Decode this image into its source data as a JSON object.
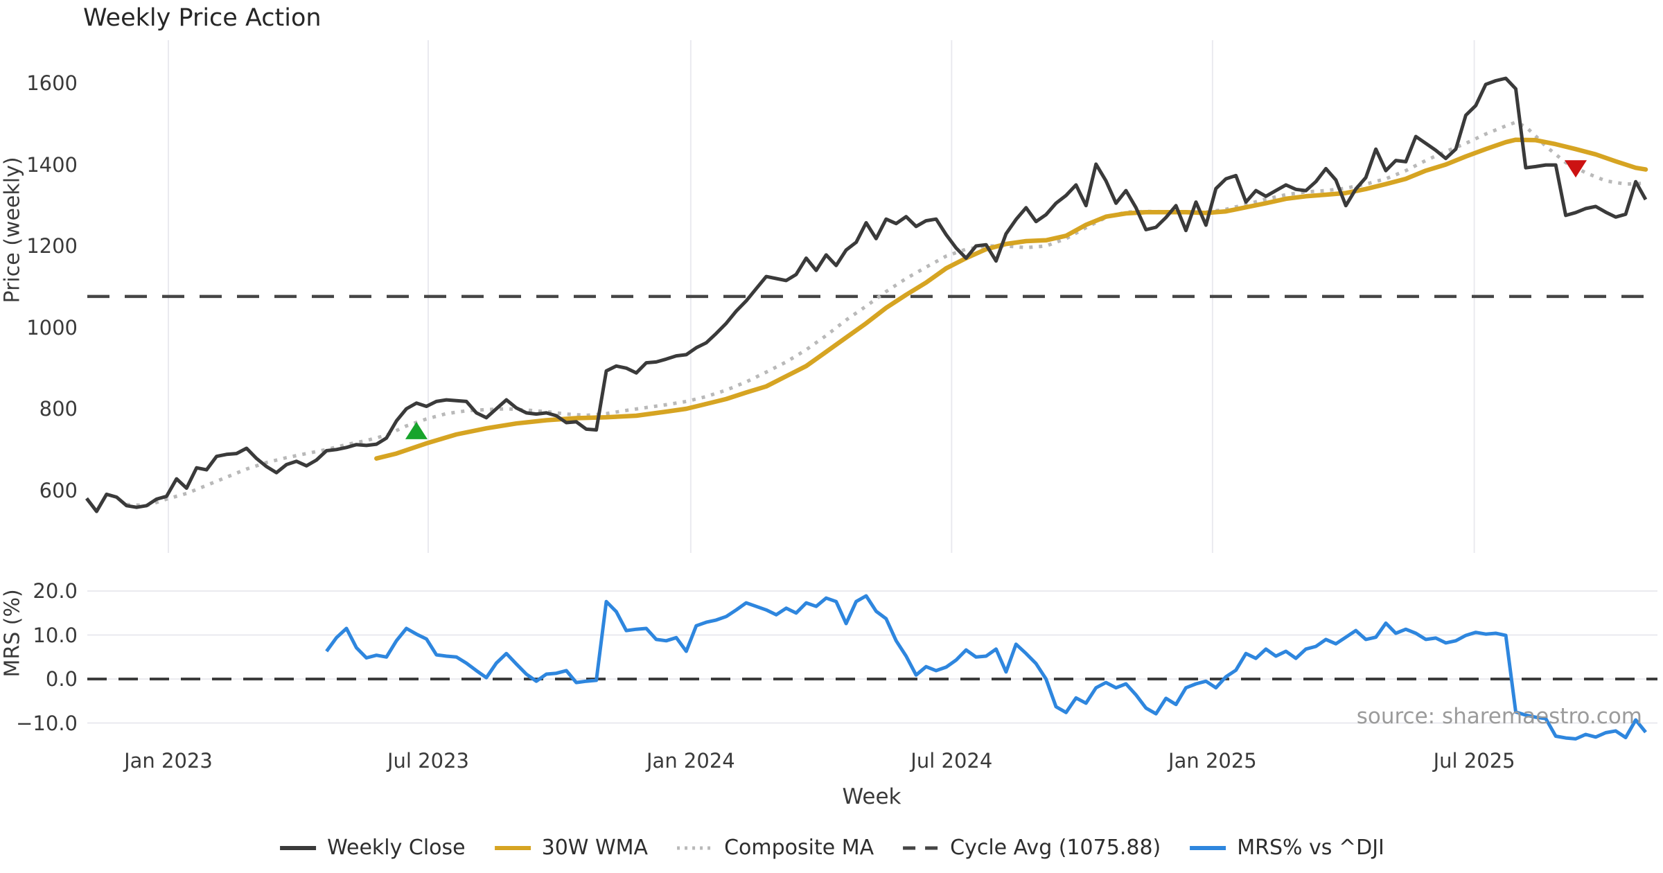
{
  "title": "Weekly Price Action",
  "source": "source: sharemaestro.com",
  "colors": {
    "weekly_close": "#3a3a3a",
    "wma30": "#d6a422",
    "composite_ma": "#b9b9b9",
    "cycle_avg": "#454545",
    "mrs": "#2e86de",
    "buy_marker": "#17a42c",
    "sell_marker": "#cc1212",
    "grid": "#eaeaef",
    "text": "#3a3a3a"
  },
  "x_axis": {
    "label": "Week",
    "ticks": [
      {
        "week": 8.18,
        "label": "Jan 2023"
      },
      {
        "week": 34.18,
        "label": "Jul 2023"
      },
      {
        "week": 60.45,
        "label": "Jan 2024"
      },
      {
        "week": 86.55,
        "label": "Jul 2024"
      },
      {
        "week": 112.66,
        "label": "Jan 2025"
      },
      {
        "week": 138.85,
        "label": "Jul 2025"
      }
    ]
  },
  "legend": [
    {
      "label": "Weekly Close",
      "style": "solid",
      "color": "#3a3a3a"
    },
    {
      "label": "30W WMA",
      "style": "solid",
      "color": "#d6a422"
    },
    {
      "label": "Composite MA",
      "style": "dotted",
      "color": "#b9b9b9"
    },
    {
      "label": "Cycle Avg (1075.88)",
      "style": "dashed",
      "color": "#454545"
    },
    {
      "label": "MRS% vs ^DJI",
      "style": "solid",
      "color": "#2e86de"
    }
  ],
  "chart_data": [
    {
      "type": "line",
      "id": "price",
      "ylabel": "Price (weekly)",
      "ylim": [
        540,
        1660
      ],
      "yticks": [
        600,
        800,
        1000,
        1200,
        1400,
        1600
      ],
      "cycle_avg": 1075.88,
      "markers": [
        {
          "shape": "triangle-up",
          "week": 33,
          "value": 744,
          "color": "#17a42c",
          "name": "buy-signal-marker"
        },
        {
          "shape": "triangle-down",
          "week": 149,
          "value": 1392,
          "color": "#cc1212",
          "name": "sell-signal-marker"
        }
      ],
      "series": [
        {
          "name": "Weekly Close",
          "start_week": 0,
          "values": [
            580,
            548,
            590,
            583,
            562,
            558,
            562,
            578,
            585,
            628,
            605,
            655,
            650,
            683,
            688,
            690,
            703,
            678,
            658,
            643,
            663,
            671,
            660,
            674,
            697,
            700,
            705,
            712,
            710,
            713,
            728,
            770,
            800,
            814,
            806,
            818,
            822,
            820,
            818,
            790,
            778,
            800,
            822,
            802,
            790,
            787,
            790,
            783,
            766,
            768,
            750,
            748,
            893,
            905,
            900,
            888,
            913,
            915,
            922,
            930,
            933,
            950,
            962,
            985,
            1010,
            1040,
            1065,
            1095,
            1125,
            1120,
            1115,
            1130,
            1170,
            1140,
            1178,
            1152,
            1190,
            1209,
            1257,
            1218,
            1266,
            1255,
            1272,
            1248,
            1262,
            1266,
            1228,
            1195,
            1170,
            1200,
            1203,
            1163,
            1230,
            1265,
            1294,
            1260,
            1277,
            1305,
            1324,
            1350,
            1299,
            1401,
            1360,
            1305,
            1336,
            1294,
            1240,
            1246,
            1270,
            1299,
            1238,
            1308,
            1251,
            1341,
            1365,
            1373,
            1308,
            1336,
            1322,
            1336,
            1350,
            1339,
            1336,
            1358,
            1390,
            1362,
            1299,
            1340,
            1368,
            1438,
            1385,
            1410,
            1407,
            1469,
            1452,
            1435,
            1415,
            1438,
            1521,
            1545,
            1597,
            1606,
            1612,
            1586,
            1392,
            1395,
            1399,
            1399,
            1275,
            1282,
            1292,
            1297,
            1283,
            1271,
            1278,
            1358,
            1314
          ]
        },
        {
          "name": "30W WMA",
          "points": [
            [
              29,
              678
            ],
            [
              31,
              690
            ],
            [
              34,
              715
            ],
            [
              37,
              737
            ],
            [
              40,
              752
            ],
            [
              43,
              764
            ],
            [
              46,
              772
            ],
            [
              49,
              777
            ],
            [
              52,
              779
            ],
            [
              55,
              783
            ],
            [
              58,
              793
            ],
            [
              60,
              800
            ],
            [
              62,
              812
            ],
            [
              64,
              824
            ],
            [
              66,
              840
            ],
            [
              68,
              855
            ],
            [
              70,
              880
            ],
            [
              72,
              905
            ],
            [
              74,
              940
            ],
            [
              76,
              975
            ],
            [
              78,
              1010
            ],
            [
              80,
              1048
            ],
            [
              82,
              1080
            ],
            [
              84,
              1110
            ],
            [
              86,
              1145
            ],
            [
              88,
              1170
            ],
            [
              90,
              1192
            ],
            [
              92,
              1205
            ],
            [
              94,
              1212
            ],
            [
              96,
              1214
            ],
            [
              98,
              1225
            ],
            [
              100,
              1252
            ],
            [
              102,
              1272
            ],
            [
              104,
              1280
            ],
            [
              106,
              1283
            ],
            [
              108,
              1283
            ],
            [
              110,
              1283
            ],
            [
              112,
              1281
            ],
            [
              114,
              1285
            ],
            [
              116,
              1295
            ],
            [
              118,
              1305
            ],
            [
              120,
              1316
            ],
            [
              122,
              1322
            ],
            [
              124,
              1326
            ],
            [
              126,
              1330
            ],
            [
              128,
              1340
            ],
            [
              130,
              1352
            ],
            [
              132,
              1365
            ],
            [
              134,
              1385
            ],
            [
              136,
              1400
            ],
            [
              138,
              1420
            ],
            [
              140,
              1438
            ],
            [
              142,
              1455
            ],
            [
              143,
              1461
            ],
            [
              145,
              1460
            ],
            [
              147,
              1450
            ],
            [
              149,
              1438
            ],
            [
              151,
              1425
            ],
            [
              153,
              1408
            ],
            [
              155,
              1392
            ],
            [
              156,
              1388
            ]
          ]
        },
        {
          "name": "Composite MA",
          "points": [
            [
              4,
              565
            ],
            [
              6,
              562
            ],
            [
              8,
              578
            ],
            [
              10,
              592
            ],
            [
              12,
              612
            ],
            [
              14,
              632
            ],
            [
              16,
              652
            ],
            [
              18,
              668
            ],
            [
              20,
              680
            ],
            [
              22,
              690
            ],
            [
              24,
              700
            ],
            [
              26,
              712
            ],
            [
              28,
              722
            ],
            [
              30,
              735
            ],
            [
              32,
              758
            ],
            [
              34,
              775
            ],
            [
              36,
              788
            ],
            [
              38,
              795
            ],
            [
              40,
              798
            ],
            [
              42,
              800
            ],
            [
              44,
              797
            ],
            [
              46,
              793
            ],
            [
              48,
              787
            ],
            [
              50,
              784
            ],
            [
              52,
              788
            ],
            [
              54,
              796
            ],
            [
              56,
              803
            ],
            [
              58,
              810
            ],
            [
              60,
              818
            ],
            [
              62,
              830
            ],
            [
              64,
              846
            ],
            [
              66,
              866
            ],
            [
              68,
              890
            ],
            [
              70,
              915
            ],
            [
              72,
              945
            ],
            [
              74,
              980
            ],
            [
              76,
              1018
            ],
            [
              78,
              1052
            ],
            [
              80,
              1088
            ],
            [
              82,
              1120
            ],
            [
              84,
              1148
            ],
            [
              86,
              1175
            ],
            [
              88,
              1192
            ],
            [
              90,
              1200
            ],
            [
              92,
              1200
            ],
            [
              94,
              1196
            ],
            [
              96,
              1200
            ],
            [
              98,
              1218
            ],
            [
              100,
              1245
            ],
            [
              102,
              1270
            ],
            [
              104,
              1283
            ],
            [
              106,
              1285
            ],
            [
              108,
              1284
            ],
            [
              110,
              1283
            ],
            [
              112,
              1283
            ],
            [
              114,
              1290
            ],
            [
              116,
              1302
            ],
            [
              118,
              1315
            ],
            [
              120,
              1326
            ],
            [
              122,
              1333
            ],
            [
              124,
              1336
            ],
            [
              126,
              1342
            ],
            [
              128,
              1352
            ],
            [
              130,
              1365
            ],
            [
              132,
              1385
            ],
            [
              134,
              1410
            ],
            [
              136,
              1432
            ],
            [
              138,
              1452
            ],
            [
              140,
              1475
            ],
            [
              142,
              1495
            ],
            [
              143,
              1504
            ],
            [
              144,
              1493
            ],
            [
              145,
              1470
            ],
            [
              146,
              1445
            ],
            [
              148,
              1405
            ],
            [
              150,
              1380
            ],
            [
              152,
              1360
            ],
            [
              154,
              1352
            ],
            [
              156,
              1354
            ]
          ]
        }
      ]
    },
    {
      "type": "line",
      "id": "mrs",
      "ylabel": "MRS (%)",
      "ylim": [
        -14.5,
        21.5
      ],
      "yticks": [
        {
          "v": 20,
          "label": "20.0"
        },
        {
          "v": 10,
          "label": "10.0"
        },
        {
          "v": 0,
          "label": "0.0"
        },
        {
          "v": -10,
          "label": "−10.0"
        }
      ],
      "zero_line": 0,
      "series": [
        {
          "name": "MRS% vs ^DJI",
          "start_week": 24,
          "values": [
            6.3,
            9.4,
            11.5,
            7.1,
            4.8,
            5.4,
            5.0,
            8.7,
            11.5,
            10.2,
            9.1,
            5.5,
            5.2,
            5.0,
            3.6,
            1.9,
            0.3,
            3.6,
            5.8,
            3.4,
            1.1,
            -0.5,
            1.1,
            1.3,
            1.9,
            -0.8,
            -0.5,
            -0.3,
            17.6,
            15.3,
            11.0,
            11.3,
            11.5,
            9.0,
            8.7,
            9.4,
            6.3,
            12.1,
            12.9,
            13.4,
            14.2,
            15.7,
            17.3,
            16.5,
            15.7,
            14.6,
            16.1,
            15.0,
            17.3,
            16.5,
            18.4,
            17.6,
            12.6,
            17.6,
            18.9,
            15.4,
            13.7,
            8.7,
            5.2,
            0.9,
            2.8,
            1.9,
            2.7,
            4.3,
            6.6,
            5.0,
            5.2,
            6.8,
            1.6,
            7.9,
            5.8,
            3.5,
            0.0,
            -6.3,
            -7.6,
            -4.3,
            -5.5,
            -2.0,
            -0.8,
            -2.0,
            -1.1,
            -3.6,
            -6.6,
            -7.9,
            -4.4,
            -5.8,
            -2.0,
            -1.1,
            -0.5,
            -2.0,
            0.5,
            2.0,
            5.8,
            4.7,
            6.8,
            5.2,
            6.3,
            4.7,
            6.8,
            7.4,
            9.0,
            8.0,
            9.5,
            11.0,
            9.0,
            9.5,
            12.7,
            10.4,
            11.3,
            10.4,
            9.0,
            9.3,
            8.2,
            8.7,
            9.9,
            10.6,
            10.2,
            10.4,
            9.9,
            -7.5,
            -8.2,
            -8.7,
            -9.0,
            -13.0,
            -13.4,
            -13.6,
            -12.6,
            -13.2,
            -12.2,
            -11.8,
            -13.3,
            -9.3,
            -12.1
          ]
        }
      ]
    }
  ]
}
